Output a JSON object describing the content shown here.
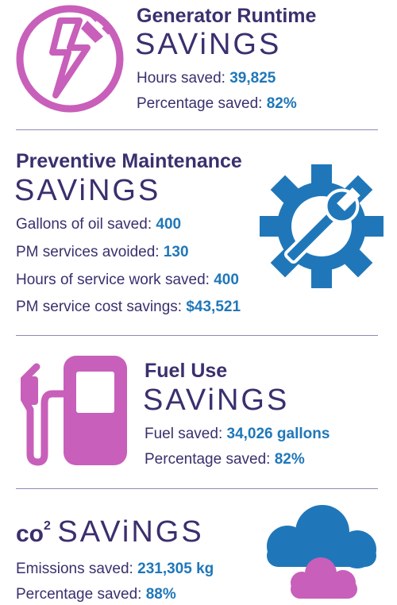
{
  "sections": {
    "generator": {
      "title": "Generator Runtime",
      "savings": "SAViNGS",
      "stats": [
        {
          "label": "Hours saved:",
          "value": "39,825"
        },
        {
          "label": "Percentage saved:",
          "value": "82%"
        }
      ],
      "icon": "lightning-plug-icon"
    },
    "maintenance": {
      "title": "Preventive Maintenance",
      "savings": "SAViNGS",
      "stats": [
        {
          "label": "Gallons of oil saved:",
          "value": "400"
        },
        {
          "label": "PM services avoided:",
          "value": "130"
        },
        {
          "label": "Hours of service work saved:",
          "value": "400"
        },
        {
          "label": "PM service cost savings:",
          "value": "$43,521"
        }
      ],
      "icon": "gear-wrench-icon"
    },
    "fuel": {
      "title": "Fuel Use",
      "savings": "SAViNGS",
      "stats": [
        {
          "label": "Fuel saved:",
          "value": "34,026 gallons"
        },
        {
          "label": "Percentage saved:",
          "value": "82%"
        }
      ],
      "icon": "fuel-pump-icon"
    },
    "co2": {
      "co": "co",
      "two": "2",
      "savings": "SAViNGS",
      "stats": [
        {
          "label": "Emissions saved:",
          "value": "231,305 kg"
        },
        {
          "label": "Percentage saved:",
          "value": "88%"
        }
      ],
      "icon": "cloud-icon"
    }
  },
  "colors": {
    "purple": "#c85fba",
    "navy": "#3b2f6e",
    "blue": "#1f77b9",
    "divider": "#8e8bb5"
  }
}
